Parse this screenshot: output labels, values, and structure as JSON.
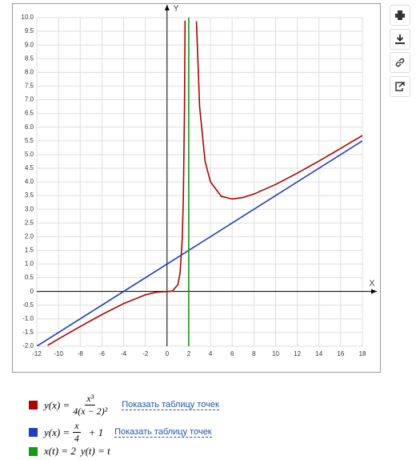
{
  "chart_data": {
    "type": "line",
    "x_axis_label": "X",
    "y_axis_label": "Y",
    "xlim": [
      -12,
      18
    ],
    "ylim": [
      -2,
      10
    ],
    "xticks": [
      -12,
      -10,
      -8,
      -6,
      -4,
      -2,
      0,
      2,
      4,
      6,
      8,
      10,
      12,
      14,
      16,
      18
    ],
    "yticks": [
      {
        "value": -2,
        "label": "-2.0"
      },
      {
        "value": -1.5,
        "label": "-1.5"
      },
      {
        "value": -1,
        "label": "-1.0"
      },
      {
        "value": -0.5,
        "label": "-0.5"
      },
      0,
      {
        "value": 0.5,
        "label": "0.5"
      },
      {
        "value": 1,
        "label": "1.0"
      },
      {
        "value": 1.5,
        "label": "1.5"
      },
      {
        "value": 2,
        "label": "2.0"
      },
      {
        "value": 2.5,
        "label": "2.5"
      },
      {
        "value": 3,
        "label": "3.0"
      },
      {
        "value": 3.5,
        "label": "3.5"
      },
      {
        "value": 4,
        "label": "4.0"
      },
      {
        "value": 4.5,
        "label": "4.5"
      },
      {
        "value": 5,
        "label": "5.0"
      },
      {
        "value": 5.5,
        "label": "5.5"
      },
      {
        "value": 6,
        "label": "6.0"
      },
      {
        "value": 6.5,
        "label": "6.5"
      },
      {
        "value": 7,
        "label": "7.0"
      },
      {
        "value": 7.5,
        "label": "7.5"
      },
      {
        "value": 8,
        "label": "8.0"
      },
      {
        "value": 8.5,
        "label": "8.5"
      },
      {
        "value": 9,
        "label": "9.0"
      },
      {
        "value": 9.5,
        "label": "9.5"
      },
      {
        "value": 10,
        "label": "10.0"
      }
    ],
    "grid": true,
    "series": [
      {
        "name": "y(x) =",
        "num": "x³",
        "den": "4(x − 2)²",
        "link": "Показать таблицу точек",
        "color": "#b00000",
        "x": [
          -11,
          -10,
          -8,
          -6,
          -4,
          -2,
          -1,
          0,
          0.5,
          1,
          1.2,
          1.4,
          1.5,
          1.6,
          1.65,
          1.66,
          null,
          2.71,
          3,
          3.5,
          4,
          5,
          6,
          7,
          8,
          10,
          12,
          14,
          16,
          18
        ],
        "values": [
          -1.969,
          -1.736,
          -1.28,
          -0.844,
          -0.444,
          -0.125,
          -0.028,
          0,
          0.014,
          0.25,
          0.675,
          1.906,
          3.375,
          6.4,
          9.17,
          9.89,
          null,
          9.87,
          6.75,
          4.764,
          4,
          3.472,
          3.375,
          3.43,
          3.556,
          3.906,
          4.32,
          4.764,
          5.224,
          5.695
        ]
      },
      {
        "name": "y(x) =",
        "num": "x",
        "den": "4",
        "tail": "+ 1",
        "link": "Показать таблицу точек",
        "color": "#1f3fbf",
        "x": [
          -12,
          18
        ],
        "values": [
          -2,
          5.5
        ]
      },
      {
        "name": "x(t) = 2",
        "tail": "y(t) = t",
        "color": "#139a13",
        "x": [
          2,
          2
        ],
        "values": [
          -2,
          10
        ]
      }
    ]
  }
}
